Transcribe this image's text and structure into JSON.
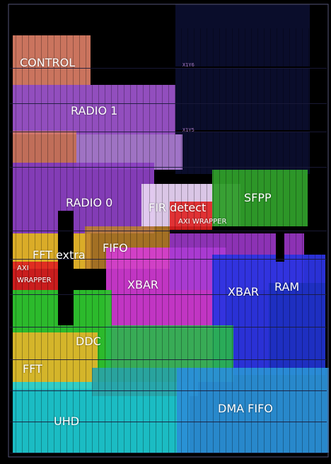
{
  "image": {
    "background": "#000000",
    "accent_clock_region": "#6c3d8a"
  },
  "clock_regions": [
    "X1Y6",
    "X1Y5"
  ],
  "labels": {
    "control": "CONTROL",
    "radio1": "RADIO 1",
    "radio0": "RADIO 0",
    "fir_detect": "FIR detect",
    "axi_wrapper_top": "AXI WRAPPER",
    "sfpp": "SFPP",
    "fft_extra": "FFT extra",
    "fifo": "FIFO",
    "axi_left_1": "AXI",
    "axi_left_2": "WRAPPER",
    "xbar_left": "XBAR",
    "xbar_right": "XBAR",
    "ram": "RAM",
    "ddc": "DDC",
    "fft": "FFT",
    "dma_fifo": "DMA FIFO",
    "uhd": "UHD"
  },
  "module_colors": {
    "control": "#d57a63",
    "radio1": "#9a52c8",
    "radio0": "#8a3fc0",
    "fir": "#e6d1f2",
    "axi": "#e02020",
    "sfpp": "#2f9e2a",
    "fft_extra": "#e6b52a",
    "fifo": "#c0842a",
    "xbar": "#d63bd8",
    "xbar_dense": "#2c34e0",
    "ram": "#1d2fc0",
    "ddc": "#2ec42e",
    "fft": "#e7b52a",
    "dma_fifo": "#2a8fd6",
    "uhd": "#1ed0d8"
  }
}
